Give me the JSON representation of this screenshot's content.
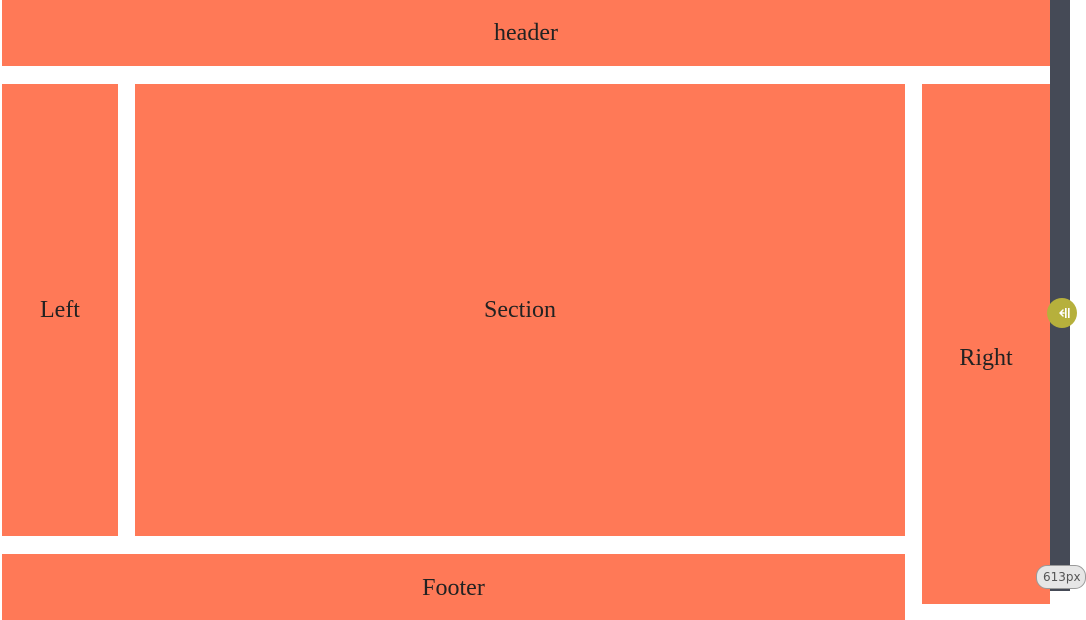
{
  "colors": {
    "block_fill": "#ff7957",
    "gutter": "#ffffff",
    "dev_panel": "#454a56",
    "toggle_handle": "#b6b03c",
    "badge_bg": "#e6e6e6"
  },
  "layout_blocks": {
    "header": "header",
    "left": "Left",
    "section": "Section",
    "right": "Right",
    "footer": "Footer"
  },
  "dev_panel": {
    "toggle_icon": "collapse-arrow-icon",
    "viewport_readout": "613px"
  }
}
